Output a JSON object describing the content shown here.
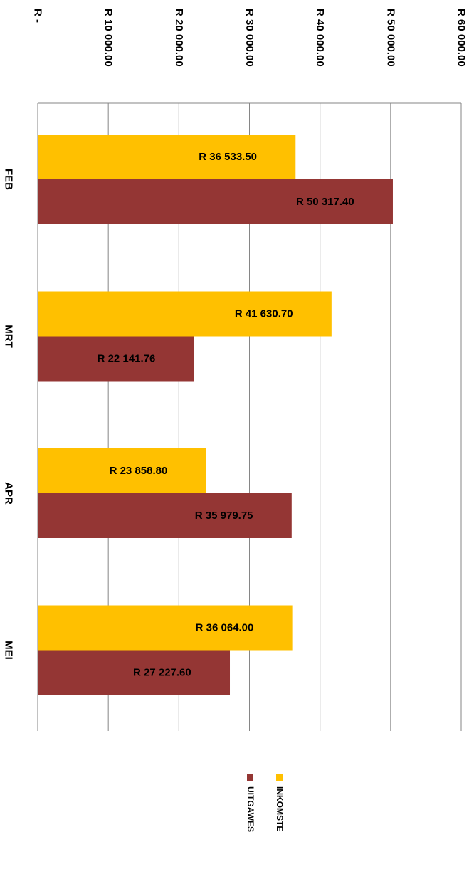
{
  "chart_data": {
    "type": "bar",
    "orientation": "horizontal",
    "categories": [
      "FEB",
      "MRT",
      "APR",
      "MEI"
    ],
    "series": [
      {
        "name": "INKOMSTE",
        "color": "#FFC000",
        "values": [
          36533.5,
          41630.7,
          23858.8,
          36064.0
        ],
        "labels": [
          "R 36 533.50",
          "R 41 630.70",
          "R 23 858.80",
          "R 36 064.00"
        ]
      },
      {
        "name": "UITGAWES",
        "color": "#943634",
        "values": [
          50317.4,
          22141.76,
          35979.75,
          27227.6
        ],
        "labels": [
          "R 50 317.40",
          "R 22 141.76",
          "R 35 979.75",
          "R 27 227.60"
        ]
      }
    ],
    "value_axis": {
      "min": 0,
      "max": 60000,
      "step": 10000,
      "tick_labels": [
        "R -",
        "R 10 000.00",
        "R 20 000.00",
        "R 30 000.00",
        "R 40 000.00",
        "R 50 000.00",
        "R 60 000.00"
      ]
    },
    "grid": true,
    "legend_position": "bottom",
    "rotation": "rotated 90 degrees clockwise"
  }
}
